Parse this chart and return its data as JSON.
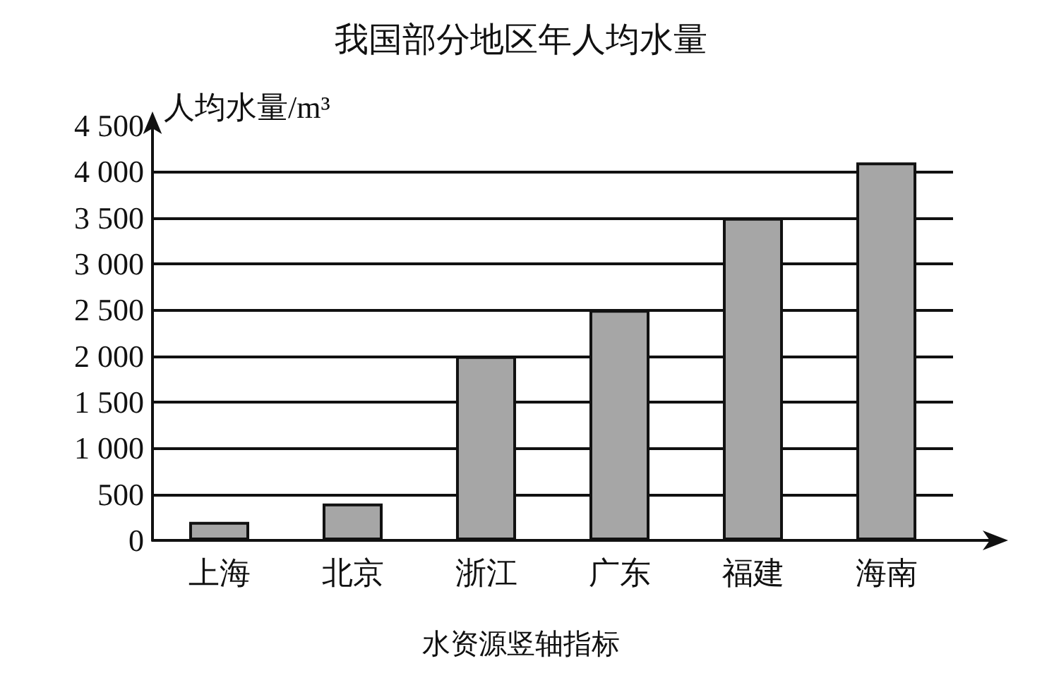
{
  "chart_data": {
    "type": "bar",
    "title": "我国部分地区年人均水量",
    "ylabel": "人均水量/m³",
    "categories": [
      "上海",
      "北京",
      "浙江",
      "广东",
      "福建",
      "海南"
    ],
    "values": [
      200,
      400,
      2000,
      2500,
      3500,
      4100
    ],
    "color": "#a6a6a6",
    "ylim": [
      0,
      4500
    ],
    "yticks": [
      0,
      500,
      {
        "value": 1000,
        "label": "1 000"
      },
      {
        "value": 1500,
        "label": "1 500"
      },
      {
        "value": 2000,
        "label": "2 000"
      },
      {
        "value": 2500,
        "label": "2 500"
      },
      {
        "value": 3000,
        "label": "3 000"
      },
      {
        "value": 3500,
        "label": "3 500"
      },
      {
        "value": 4000,
        "label": "4 000"
      },
      {
        "value": 4500,
        "label": "4 500"
      }
    ],
    "grid": "y",
    "annotations": [
      "水资源竖轴指标"
    ]
  }
}
